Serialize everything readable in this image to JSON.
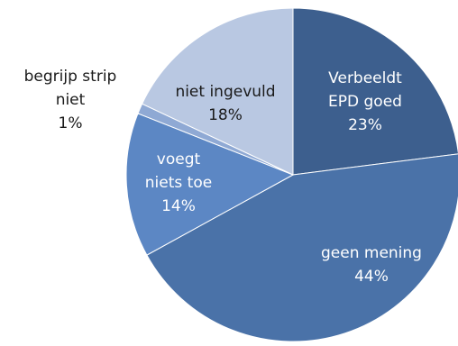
{
  "chart_data": {
    "type": "pie",
    "title": "",
    "start_angle_deg": 0,
    "direction": "clockwise",
    "slices": [
      {
        "label_lines": [
          "Verbeeldt",
          "EPD goed"
        ],
        "value_label": "23%",
        "value": 23,
        "color": "#3D5F8E",
        "text_color": "#ffffff"
      },
      {
        "label_lines": [
          "geen mening"
        ],
        "value_label": "44%",
        "value": 44,
        "color": "#4A72A8",
        "text_color": "#ffffff"
      },
      {
        "label_lines": [
          "voegt",
          "niets toe"
        ],
        "value_label": "14%",
        "value": 14,
        "color": "#5C87C4",
        "text_color": "#ffffff"
      },
      {
        "label_lines": [
          "begrijp strip",
          "niet"
        ],
        "value_label": "1%",
        "value": 1,
        "color": "#8FA9D4",
        "text_color": "#1a1a1a"
      },
      {
        "label_lines": [
          "niet ingevuld"
        ],
        "value_label": "18%",
        "value": 18,
        "color": "#B9C8E2",
        "text_color": "#1a1a1a"
      }
    ]
  }
}
